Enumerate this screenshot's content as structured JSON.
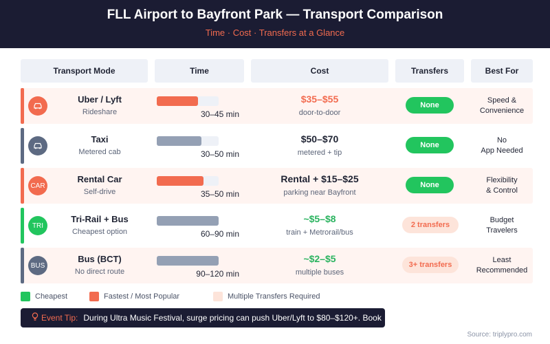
{
  "header": {
    "title": "FLL Airport to Bayfront Park — Transport Comparison",
    "subtitle": "Time · Cost · Transfers at a Glance"
  },
  "table": {
    "columns": [
      "Transport Mode",
      "Time",
      "Cost",
      "Transfers",
      "Best For"
    ],
    "rows": [
      {
        "mode": "Uber / Lyft",
        "sub": "Rideshare",
        "icon": "car-icon",
        "icon_text": "",
        "time": "30–45 min",
        "time_fill": 0.67,
        "bar_color": "#f26b4f",
        "cost": "$35–$55",
        "cost_sub": "door-to-door",
        "cost_color": "#f26b4f",
        "transfers": "None",
        "pill_type": "green",
        "best_1": "Speed &",
        "best_2": "Convenience",
        "row_bg": "#fff4f1",
        "accent": "#f26b4f",
        "icon_bg": "#f26b4f"
      },
      {
        "mode": "Taxi",
        "sub": "Metered cab",
        "icon": "car-icon",
        "icon_text": "",
        "time": "30–50 min",
        "time_fill": 0.72,
        "bar_color": "#94a0b4",
        "cost": "$50–$70",
        "cost_sub": "metered + tip",
        "cost_color": "#1f2333",
        "transfers": "None",
        "pill_type": "green",
        "best_1": "No",
        "best_2": "App Needed",
        "row_bg": "#ffffff",
        "accent": "#5d6a82",
        "icon_bg": "#5d6a82"
      },
      {
        "mode": "Rental Car",
        "sub": "Self-drive",
        "icon": "car-text-icon",
        "icon_text": "CAR",
        "time": "35–50 min",
        "time_fill": 0.75,
        "bar_color": "#f26b4f",
        "cost": "Rental + $15–$25",
        "cost_sub": "parking near Bayfront",
        "cost_color": "#1f2333",
        "transfers": "None",
        "pill_type": "green",
        "best_1": "Flexibility",
        "best_2": "& Control",
        "row_bg": "#fff4f1",
        "accent": "#f26b4f",
        "icon_bg": "#f26b4f"
      },
      {
        "mode": "Tri-Rail + Bus",
        "sub": "Cheapest option",
        "icon": "train-text-icon",
        "icon_text": "TRI",
        "time": "60–90 min",
        "time_fill": 1.0,
        "bar_color": "#94a0b4",
        "cost": "~$5–$8",
        "cost_sub": "train + Metrorail/bus",
        "cost_color": "#2ab35f",
        "transfers": "2 transfers",
        "pill_type": "peach",
        "best_1": "Budget",
        "best_2": "Travelers",
        "row_bg": "#ffffff",
        "accent": "#22c55e",
        "icon_bg": "#22c55e"
      },
      {
        "mode": "Bus (BCT)",
        "sub": "No direct route",
        "icon": "bus-text-icon",
        "icon_text": "BUS",
        "time": "90–120 min",
        "time_fill": 1.0,
        "bar_color": "#94a0b4",
        "cost": "~$2–$5",
        "cost_sub": "multiple buses",
        "cost_color": "#2ab35f",
        "transfers": "3+ transfers",
        "pill_type": "peach",
        "best_1": "Least",
        "best_2": "Recommended",
        "row_bg": "#fff4f1",
        "accent": "#5d6a82",
        "icon_bg": "#5d6a82"
      }
    ]
  },
  "legend": {
    "cheapest": "Cheapest",
    "fastest": "Fastest / Most Popular",
    "transfers": "Multiple Transfers Required"
  },
  "tip": {
    "label": "Event Tip:",
    "text": "During Ultra Music Festival, surge pricing can push Uber/Lyft to $80–$120+. Book"
  },
  "source": "Source: triplypro.com",
  "colors": {
    "header_bg": "#1b1c33",
    "accent_coral": "#f26b4f",
    "green": "#22c55e",
    "slate": "#5d6a82",
    "peach": "#fde4da"
  }
}
